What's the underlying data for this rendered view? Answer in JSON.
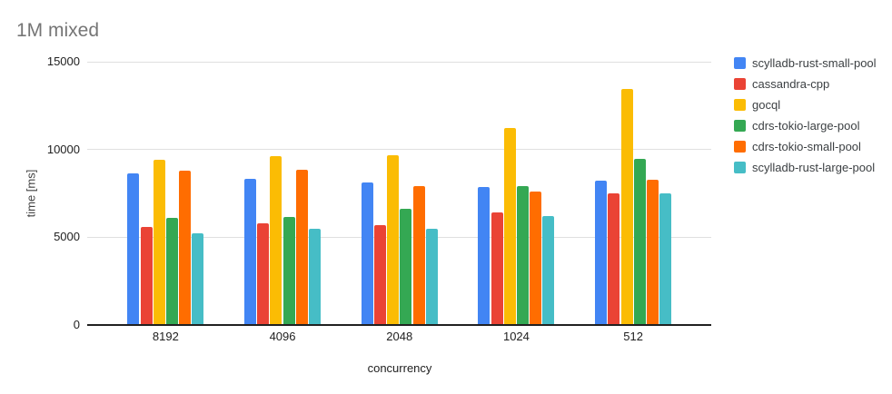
{
  "chart_data": {
    "type": "bar",
    "title": "1M mixed",
    "xlabel": "concurrency",
    "ylabel": "time [ms]",
    "categories": [
      "8192",
      "4096",
      "2048",
      "1024",
      "512"
    ],
    "series": [
      {
        "name": "scylladb-rust-small-pool",
        "color": "#4285F4",
        "values": [
          8640,
          8340,
          8120,
          7860,
          8220
        ]
      },
      {
        "name": "cassandra-cpp",
        "color": "#EA4335",
        "values": [
          5600,
          5780,
          5690,
          6400,
          7500
        ]
      },
      {
        "name": "gocql",
        "color": "#FBBC04",
        "values": [
          9410,
          9600,
          9670,
          11220,
          13470
        ]
      },
      {
        "name": "cdrs-tokio-large-pool",
        "color": "#34A853",
        "values": [
          6100,
          6140,
          6640,
          7910,
          9440
        ]
      },
      {
        "name": "cdrs-tokio-small-pool",
        "color": "#FF6D01",
        "values": [
          8780,
          8830,
          7930,
          7600,
          8260
        ]
      },
      {
        "name": "scylladb-rust-large-pool",
        "color": "#46BDC6",
        "values": [
          5220,
          5470,
          5470,
          6220,
          7480
        ]
      }
    ],
    "ylim": [
      0,
      15000
    ],
    "yticks": [
      0,
      5000,
      10000,
      15000
    ],
    "ytick_labels": [
      "0",
      "5000",
      "10000",
      "15000"
    ],
    "grid": true,
    "legend_position": "right",
    "colors": {
      "title_text": "#757575",
      "axis_text": "#212121",
      "gridline": "#e0e0e0",
      "axis_line": "#212121",
      "background": "#ffffff"
    }
  }
}
